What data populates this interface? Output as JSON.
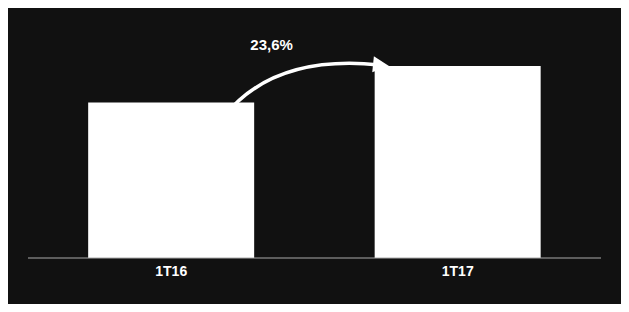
{
  "chart_data": {
    "type": "bar",
    "categories": [
      "1T16",
      "1T17"
    ],
    "values": [
      100,
      123.6
    ],
    "color": "#ffffff",
    "ylim": [
      0,
      148
    ],
    "tick_labels": "x",
    "grid": false,
    "annotations": [
      "23,6%"
    ]
  }
}
